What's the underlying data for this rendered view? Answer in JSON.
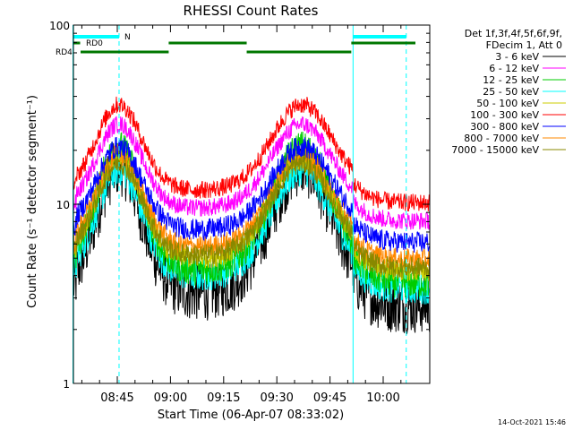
{
  "chart_data": {
    "type": "line",
    "title": "RHESSI Count Rates",
    "xlabel": "Start Time (06-Apr-07 08:33:02)",
    "ylabel": "Count Rate (s⁻¹ detector segment⁻¹)",
    "y_scale": "log",
    "ylim": [
      1,
      100
    ],
    "xlim_minutes": [
      0,
      40
    ],
    "x_ticks": [
      {
        "label": "08:45",
        "minute": 12
      },
      {
        "label": "09:00",
        "minute": 27
      },
      {
        "label": "09:15",
        "minute": 42
      },
      {
        "label": "09:30",
        "minute": 57
      },
      {
        "label": "09:45",
        "minute": 72
      },
      {
        "label": "10:00",
        "minute": 87
      }
    ],
    "y_ticks": [
      {
        "label": "1",
        "value": 1
      },
      {
        "label": "10",
        "value": 10
      },
      {
        "label": "100",
        "value": 100
      }
    ],
    "legend_header": [
      "Det 1f,3f,4f,5f,6f,9f,",
      "FDecim 1, Att 0"
    ],
    "series": [
      {
        "name": "3 - 6 keV",
        "color": "#000000",
        "min": 3.2,
        "max": 16,
        "noise": 0.16
      },
      {
        "name": "6 - 12 keV",
        "color": "#ff00ff",
        "min": 9.5,
        "max": 28,
        "noise": 0.05
      },
      {
        "name": "12 - 25 keV",
        "color": "#00cc00",
        "min": 4.3,
        "max": 21,
        "noise": 0.09
      },
      {
        "name": "25 - 50 keV",
        "color": "#00ffff",
        "min": 4.0,
        "max": 15.5,
        "noise": 0.09
      },
      {
        "name": "50 - 100 keV",
        "color": "#cccc00",
        "min": 5.0,
        "max": 18,
        "noise": 0.06
      },
      {
        "name": "100 - 300 keV",
        "color": "#ff0000",
        "min": 12,
        "max": 36,
        "noise": 0.05
      },
      {
        "name": "300 - 800 keV",
        "color": "#0000ff",
        "min": 7.2,
        "max": 21,
        "noise": 0.06
      },
      {
        "name": "800 - 7000 keV",
        "color": "#ff8800",
        "min": 5.8,
        "max": 19,
        "noise": 0.06
      },
      {
        "name": "7000 - 15000 keV",
        "color": "#888800",
        "min": 5.2,
        "max": 17,
        "noise": 0.06
      }
    ],
    "annotations": {
      "night_label": "N",
      "rd0_label": "RD0",
      "rd4_label": "RD4",
      "cyan_solid_lines_minute": [
        -0.5,
        78.5
      ],
      "cyan_dashed_lines_minute": [
        12.5,
        93.5
      ]
    },
    "timestamp": "14-Oct-2021 15:46"
  }
}
